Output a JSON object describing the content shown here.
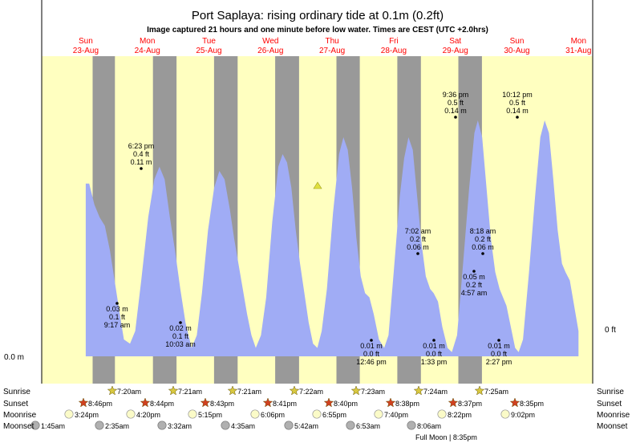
{
  "title": "Port Saplaya: rising  ordinary tide at 0.1m (0.2ft)",
  "subtitle": "Image captured 21 hours and one minute before low water. Times are CEST (UTC +2.0hrs)",
  "chart_data": {
    "type": "area",
    "colors": {
      "day": "#ffffc0",
      "night": "#999999",
      "tide": "#a0acf5",
      "sun": "#d8c840",
      "sunset": "#d04020",
      "moon": "#fbfbc8",
      "moonset": "#b0b0b0",
      "day_labels": "#ff0000"
    },
    "x_range": [
      "23-Aug 12:00",
      "31-Aug 24:00"
    ],
    "y_range_m": [
      0.0,
      0.5
    ],
    "y_axis_left_label": "0.0 m",
    "y_axis_right_label": "0 ft",
    "days": [
      {
        "weekday": "Sun",
        "date": "23-Aug"
      },
      {
        "weekday": "Mon",
        "date": "24-Aug"
      },
      {
        "weekday": "Tue",
        "date": "25-Aug"
      },
      {
        "weekday": "Wed",
        "date": "26-Aug"
      },
      {
        "weekday": "Thu",
        "date": "27-Aug"
      },
      {
        "weekday": "Fri",
        "date": "28-Aug"
      },
      {
        "weekday": "Sat",
        "date": "29-Aug"
      },
      {
        "weekday": "Sun",
        "date": "30-Aug"
      },
      {
        "weekday": "Mon",
        "date": "31-Aug"
      }
    ],
    "tide_series": [
      [
        11.9,
        0.41
      ],
      [
        12.3,
        0.41
      ],
      [
        12.9,
        0.36
      ],
      [
        13.5,
        0.33
      ],
      [
        14.1,
        0.31
      ],
      [
        14.7,
        0.25
      ],
      [
        15.3,
        0.17
      ],
      [
        15.9,
        0.09
      ],
      [
        16.3,
        0.04
      ],
      [
        17.0,
        0.03
      ],
      [
        17.6,
        0.06
      ],
      [
        18.3,
        0.18
      ],
      [
        19.1,
        0.33
      ],
      [
        19.8,
        0.42
      ],
      [
        20.4,
        0.45
      ],
      [
        21.0,
        0.42
      ],
      [
        21.6,
        0.33
      ],
      [
        22.2,
        0.25
      ],
      [
        22.8,
        0.16
      ],
      [
        23.4,
        0.08
      ],
      [
        24.1,
        0.02
      ],
      [
        24.7,
        0.05
      ],
      [
        25.3,
        0.15
      ],
      [
        26.0,
        0.3
      ],
      [
        26.7,
        0.4
      ],
      [
        27.3,
        0.44
      ],
      [
        27.9,
        0.42
      ],
      [
        28.5,
        0.35
      ],
      [
        29.0,
        0.28
      ],
      [
        29.5,
        0.22
      ],
      [
        30.0,
        0.16
      ],
      [
        30.5,
        0.1
      ],
      [
        31.0,
        0.05
      ],
      [
        31.5,
        0.02
      ],
      [
        32.1,
        0.05
      ],
      [
        32.7,
        0.14
      ],
      [
        33.4,
        0.32
      ],
      [
        34.1,
        0.45
      ],
      [
        34.6,
        0.48
      ],
      [
        35.1,
        0.46
      ],
      [
        35.6,
        0.4
      ],
      [
        36.1,
        0.3
      ],
      [
        36.6,
        0.22
      ],
      [
        37.1,
        0.15
      ],
      [
        37.6,
        0.08
      ],
      [
        38.1,
        0.03
      ],
      [
        38.6,
        0.02
      ],
      [
        39.1,
        0.06
      ],
      [
        39.7,
        0.16
      ],
      [
        40.4,
        0.34
      ],
      [
        41.1,
        0.48
      ],
      [
        41.6,
        0.52
      ],
      [
        42.1,
        0.49
      ],
      [
        42.6,
        0.4
      ],
      [
        43.1,
        0.28
      ],
      [
        43.6,
        0.19
      ],
      [
        44.1,
        0.15
      ],
      [
        44.6,
        0.14
      ],
      [
        45.1,
        0.1
      ],
      [
        45.7,
        0.04
      ],
      [
        46.3,
        0.02
      ],
      [
        46.8,
        0.05
      ],
      [
        47.4,
        0.2
      ],
      [
        48.1,
        0.38
      ],
      [
        48.6,
        0.47
      ],
      [
        49.1,
        0.52
      ],
      [
        49.6,
        0.49
      ],
      [
        50.1,
        0.38
      ],
      [
        50.6,
        0.27
      ],
      [
        51.1,
        0.19
      ],
      [
        51.6,
        0.16
      ],
      [
        52.0,
        0.15
      ],
      [
        52.5,
        0.13
      ],
      [
        53.0,
        0.07
      ],
      [
        53.6,
        0.02
      ],
      [
        54.1,
        0.01
      ],
      [
        54.7,
        0.05
      ],
      [
        55.4,
        0.22
      ],
      [
        56.1,
        0.4
      ],
      [
        56.7,
        0.53
      ],
      [
        57.1,
        0.56
      ],
      [
        57.6,
        0.52
      ],
      [
        58.1,
        0.4
      ],
      [
        58.6,
        0.28
      ],
      [
        59.1,
        0.2
      ],
      [
        59.6,
        0.16
      ],
      [
        60.0,
        0.14
      ],
      [
        60.4,
        0.12
      ],
      [
        60.9,
        0.07
      ],
      [
        61.4,
        0.02
      ],
      [
        61.8,
        0.01
      ],
      [
        62.3,
        0.04
      ],
      [
        63.0,
        0.2
      ],
      [
        63.7,
        0.38
      ],
      [
        64.3,
        0.52
      ],
      [
        64.8,
        0.56
      ],
      [
        65.3,
        0.53
      ],
      [
        65.8,
        0.42
      ],
      [
        66.3,
        0.3
      ],
      [
        66.8,
        0.22
      ],
      [
        67.2,
        0.2
      ],
      [
        67.7,
        0.18
      ],
      [
        68.2,
        0.12
      ],
      [
        68.7,
        0.06
      ]
    ],
    "annotations": [
      {
        "kind": "low",
        "time": "9:17 am",
        "ft": "0.1 ft",
        "m": "0.03 m"
      },
      {
        "kind": "high",
        "time": "6:23 pm",
        "ft": "0.4 ft",
        "m": "0.11 m"
      },
      {
        "kind": "low",
        "time": "10:03 am",
        "ft": "0.1 ft",
        "m": "0.02 m"
      },
      {
        "kind": "low",
        "time": "12:46 pm",
        "ft": "0.0 ft",
        "m": "0.01 m"
      },
      {
        "kind": "high",
        "time": "7:02 am",
        "ft": "0.2 ft",
        "m": "0.06 m"
      },
      {
        "kind": "low",
        "time": "1:33 pm",
        "ft": "0.0 ft",
        "m": "0.01 m"
      },
      {
        "kind": "high",
        "time": "9:36 pm",
        "ft": "0.5 ft",
        "m": "0.14 m"
      },
      {
        "kind": "high",
        "time": "8:18 am",
        "ft": "0.2 ft",
        "m": "0.06 m"
      },
      {
        "kind": "low",
        "time": "4:57 am",
        "ft": "0.2 ft",
        "m": "0.05 m"
      },
      {
        "kind": "low",
        "time": "2:27 pm",
        "ft": "0.0 ft",
        "m": "0.01 m"
      },
      {
        "kind": "high",
        "time": "10:12 pm",
        "ft": "0.5 ft",
        "m": "0.14 m"
      }
    ],
    "rows": {
      "sunrise": "Sunrise",
      "sunset": "Sunset",
      "moonrise": "Moonrise",
      "moonset": "Moonset"
    },
    "sunrise": [
      "7:20am",
      "7:21am",
      "7:21am",
      "7:22am",
      "7:23am",
      "7:24am",
      "7:25am"
    ],
    "sunset": [
      "8:46pm",
      "8:44pm",
      "8:43pm",
      "8:41pm",
      "8:40pm",
      "8:38pm",
      "8:37pm",
      "8:35pm"
    ],
    "moonrise": [
      "3:24pm",
      "4:20pm",
      "5:15pm",
      "6:06pm",
      "6:55pm",
      "7:40pm",
      "8:22pm",
      "9:02pm"
    ],
    "moonset": [
      "1:45am",
      "2:35am",
      "3:32am",
      "4:35am",
      "5:42am",
      "6:53am",
      "8:06am"
    ],
    "moon_note": "Full Moon | 8:35pm"
  }
}
